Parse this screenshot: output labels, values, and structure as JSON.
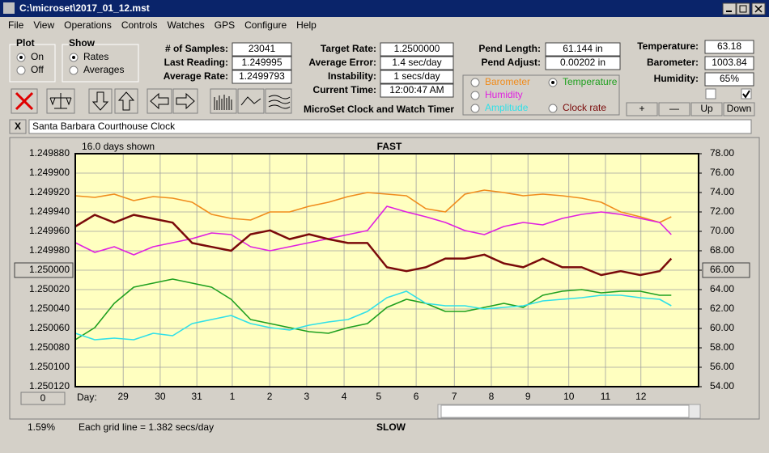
{
  "window": {
    "title": "C:\\microset\\2017_01_12.mst"
  },
  "menu": [
    "File",
    "View",
    "Operations",
    "Controls",
    "Watches",
    "GPS",
    "Configure",
    "Help"
  ],
  "plot_group": {
    "label": "Plot",
    "options": [
      "On",
      "Off"
    ],
    "selected": 0
  },
  "show_group": {
    "label": "Show",
    "options": [
      "Rates",
      "Averages"
    ],
    "selected": 0
  },
  "stats_left": [
    {
      "label": "# of Samples:",
      "value": "23041"
    },
    {
      "label": "Last Reading:",
      "value": "1.249995"
    },
    {
      "label": "Average Rate:",
      "value": "1.2499793"
    }
  ],
  "stats_mid": [
    {
      "label": "Target Rate:",
      "value": "1.2500000"
    },
    {
      "label": "Average Error:",
      "value": "1.4 sec/day"
    },
    {
      "label": "Instability:",
      "value": "1 secs/day"
    },
    {
      "label": "Current Time:",
      "value": "12:00:47 AM"
    }
  ],
  "pend": [
    {
      "label": "Pend Length:",
      "value": "61.144 in"
    },
    {
      "label": "Pend Adjust:",
      "value": "0.00202 in"
    }
  ],
  "environment": [
    {
      "label": "Temperature:",
      "value": "63.18"
    },
    {
      "label": "Barometer:",
      "value": "1003.84"
    },
    {
      "label": "Humidity:",
      "value": "65%"
    }
  ],
  "checkboxes": [
    false,
    true
  ],
  "buttons": [
    "+",
    "—",
    "Up",
    "Down"
  ],
  "app_title": "MicroSet Clock and Watch Timer",
  "legend_selected": 1,
  "close_button": "X",
  "clock_name": "Santa Barbara Courthouse Clock",
  "status": {
    "percent": "1.59%",
    "grid_note": "Each grid line = 1.382 secs/day",
    "offset_button": "0"
  },
  "chart_data": {
    "type": "line",
    "top_label": "FAST",
    "bottom_label": "SLOW",
    "days_shown": "16.0 days shown",
    "x_label": "Day:",
    "xlim": [
      0,
      16
    ],
    "xticks": [
      {
        "value": 1.23,
        "label": "29"
      },
      {
        "value": 2.18,
        "label": "30"
      },
      {
        "value": 3.12,
        "label": "31"
      },
      {
        "value": 4.03,
        "label": "1"
      },
      {
        "value": 4.99,
        "label": "2"
      },
      {
        "value": 5.94,
        "label": "3"
      },
      {
        "value": 6.9,
        "label": "4"
      },
      {
        "value": 7.79,
        "label": "5"
      },
      {
        "value": 8.75,
        "label": "6"
      },
      {
        "value": 9.73,
        "label": "7"
      },
      {
        "value": 10.68,
        "label": "8"
      },
      {
        "value": 11.62,
        "label": "9"
      },
      {
        "value": 12.67,
        "label": "10"
      },
      {
        "value": 13.61,
        "label": "11"
      },
      {
        "value": 14.52,
        "label": "12"
      }
    ],
    "ylim": [
      1.24988,
      1.25012
    ],
    "y_inverted": true,
    "yticks": [
      {
        "value": 1.24988,
        "label": "1.249880"
      },
      {
        "value": 1.2499,
        "label": "1.249900"
      },
      {
        "value": 1.24992,
        "label": "1.249920"
      },
      {
        "value": 1.24994,
        "label": "1.249940"
      },
      {
        "value": 1.24996,
        "label": "1.249960"
      },
      {
        "value": 1.24998,
        "label": "1.249980"
      },
      {
        "value": 1.25,
        "label": "1.250000"
      },
      {
        "value": 1.25002,
        "label": "1.250020"
      },
      {
        "value": 1.25004,
        "label": "1.250040"
      },
      {
        "value": 1.25006,
        "label": "1.250060"
      },
      {
        "value": 1.25008,
        "label": "1.250080"
      },
      {
        "value": 1.2501,
        "label": "1.250100"
      },
      {
        "value": 1.25012,
        "label": "1.250120"
      }
    ],
    "highlight_ytick": 6,
    "y2lim": [
      54,
      78
    ],
    "y2ticks": [
      {
        "value": 78,
        "label": "78.00"
      },
      {
        "value": 76,
        "label": "76.00"
      },
      {
        "value": 74,
        "label": "74.00"
      },
      {
        "value": 72,
        "label": "72.00"
      },
      {
        "value": 70,
        "label": "70.00"
      },
      {
        "value": 68,
        "label": "68.00"
      },
      {
        "value": 66,
        "label": "66.00"
      },
      {
        "value": 64,
        "label": "64.00"
      },
      {
        "value": 62,
        "label": "62.00"
      },
      {
        "value": 60,
        "label": "60.00"
      },
      {
        "value": 58,
        "label": "58.00"
      },
      {
        "value": 56,
        "label": "56.00"
      },
      {
        "value": 54,
        "label": "54.00"
      }
    ],
    "highlight_y2tick": 6,
    "grid": true,
    "x": [
      0,
      0.5,
      1,
      1.5,
      2,
      2.5,
      3,
      3.5,
      4,
      4.5,
      5,
      5.5,
      6,
      6.5,
      7,
      7.5,
      8,
      8.5,
      9,
      9.5,
      10,
      10.5,
      11,
      11.5,
      12,
      12.5,
      13,
      13.5,
      14,
      14.5,
      15,
      15.3
    ],
    "series": [
      {
        "name": "Barometer",
        "color": "#f08c1c",
        "axis": "y2",
        "values": [
          73.67,
          73.5,
          73.83,
          73.17,
          73.58,
          73.42,
          73,
          71.75,
          71.33,
          71.17,
          72,
          72,
          72.58,
          73,
          73.58,
          74,
          73.83,
          73.67,
          72.33,
          72,
          73.83,
          74.25,
          74,
          73.67,
          73.83,
          73.67,
          73.42,
          73,
          72,
          71.5,
          70.92,
          71.5
        ]
      },
      {
        "name": "Temperature",
        "color": "#1fa01f",
        "axis": "y2",
        "values": [
          58.83,
          60.08,
          62.58,
          64.25,
          64.67,
          65.08,
          64.67,
          64.25,
          63,
          60.92,
          60.5,
          60.08,
          59.67,
          59.5,
          60.08,
          60.5,
          62.17,
          63,
          62.58,
          61.75,
          61.75,
          62.17,
          62.58,
          62.17,
          63.42,
          63.83,
          64,
          63.67,
          63.83,
          63.83,
          63.42,
          63.42
        ]
      },
      {
        "name": "Humidity",
        "color": "#e020e0",
        "axis": "y2",
        "values": [
          68.83,
          67.83,
          68.42,
          67.58,
          68.42,
          68.83,
          69.25,
          69.83,
          69.67,
          68.42,
          68,
          68.42,
          68.83,
          69.25,
          69.67,
          70.08,
          72.58,
          72,
          71.5,
          70.92,
          70.08,
          69.67,
          70.5,
          70.92,
          70.67,
          71.33,
          71.75,
          72,
          71.75,
          71.33,
          70.92,
          69.67
        ]
      },
      {
        "name": "Amplitude",
        "color": "#30e0e8",
        "axis": "y2",
        "values": [
          59.5,
          58.83,
          59,
          58.83,
          59.5,
          59.25,
          60.5,
          60.92,
          61.33,
          60.5,
          60.08,
          59.83,
          60.33,
          60.67,
          60.92,
          61.75,
          63.17,
          63.83,
          62.58,
          62.33,
          62.33,
          62,
          62.17,
          62.33,
          62.83,
          63,
          63.17,
          63.42,
          63.42,
          63.17,
          63,
          62.33
        ]
      },
      {
        "name": "Clock rate",
        "color": "#7a0a0a",
        "axis": "y",
        "values": [
          1.249955,
          1.249943,
          1.249951,
          1.249943,
          1.249947,
          1.249951,
          1.249972,
          1.249976,
          1.24998,
          1.249963,
          1.249959,
          1.249968,
          1.249963,
          1.249968,
          1.249972,
          1.249972,
          1.249997,
          1.250001,
          1.249997,
          1.249988,
          1.249988,
          1.249984,
          1.249993,
          1.249997,
          1.249988,
          1.249997,
          1.249997,
          1.250005,
          1.250001,
          1.250005,
          1.250001,
          1.249988
        ]
      }
    ]
  }
}
